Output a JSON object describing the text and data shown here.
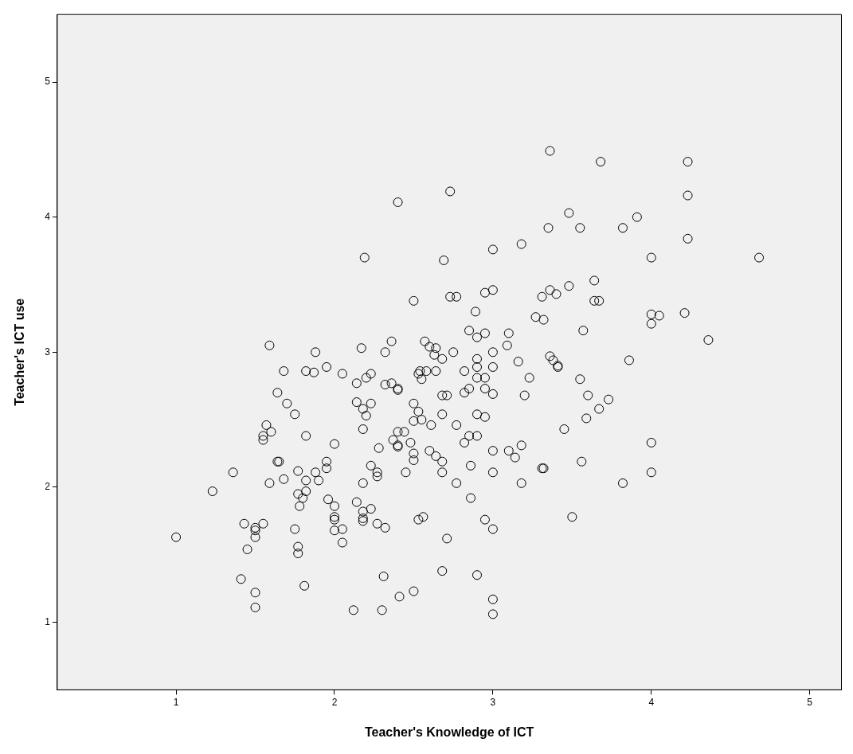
{
  "chart_data": {
    "type": "scatter",
    "xlabel": "Teacher's Knowledge of ICT",
    "ylabel": "Teacher's ICT use",
    "xlim": [
      0.25,
      5.2
    ],
    "ylim": [
      0.5,
      5.5
    ],
    "xticks": [
      1,
      2,
      3,
      4,
      5
    ],
    "yticks": [
      1,
      2,
      3,
      4,
      5
    ],
    "grid": false,
    "legend": false,
    "marker": "circle",
    "series": [
      {
        "color": "#000000",
        "x": [
          1.0,
          1.23,
          1.36,
          1.41,
          1.43,
          1.45,
          1.5,
          1.5,
          1.5,
          1.5,
          1.5,
          1.55,
          1.55,
          1.55,
          1.57,
          1.59,
          1.59,
          1.6,
          1.64,
          1.64,
          1.65,
          1.68,
          1.68,
          1.7,
          1.75,
          1.75,
          1.77,
          1.77,
          1.77,
          1.77,
          1.78,
          1.8,
          1.81,
          1.82,
          1.82,
          1.82,
          1.82,
          1.87,
          1.88,
          1.88,
          1.9,
          1.95,
          1.95,
          1.95,
          1.96,
          2.0,
          2.0,
          2.0,
          2.0,
          2.0,
          2.05,
          2.05,
          2.05,
          2.14,
          2.14,
          2.14,
          2.12,
          2.17,
          2.18,
          2.18,
          2.18,
          2.18,
          2.18,
          2.18,
          2.19,
          2.2,
          2.2,
          2.23,
          2.23,
          2.23,
          2.23,
          2.27,
          2.27,
          2.27,
          2.28,
          2.3,
          2.31,
          2.32,
          2.32,
          2.32,
          2.36,
          2.36,
          2.37,
          2.4,
          2.4,
          2.4,
          2.4,
          2.4,
          2.4,
          2.41,
          2.44,
          2.45,
          2.48,
          2.5,
          2.5,
          2.5,
          2.5,
          2.5,
          2.5,
          2.53,
          2.53,
          2.53,
          2.54,
          2.55,
          2.55,
          2.56,
          2.57,
          2.58,
          2.6,
          2.6,
          2.61,
          2.63,
          2.64,
          2.64,
          2.64,
          2.68,
          2.68,
          2.68,
          2.68,
          2.68,
          2.68,
          2.69,
          2.71,
          2.71,
          2.73,
          2.73,
          2.75,
          2.77,
          2.77,
          2.77,
          2.82,
          2.82,
          2.82,
          2.85,
          2.85,
          2.85,
          2.86,
          2.86,
          2.89,
          2.9,
          2.9,
          2.9,
          2.9,
          2.9,
          2.9,
          2.9,
          2.95,
          2.95,
          2.95,
          2.95,
          2.95,
          2.95,
          3.0,
          3.0,
          3.0,
          3.0,
          3.0,
          3.0,
          3.0,
          3.0,
          3.0,
          3.0,
          3.09,
          3.1,
          3.1,
          3.14,
          3.16,
          3.18,
          3.18,
          3.18,
          3.2,
          3.23,
          3.27,
          3.31,
          3.31,
          3.32,
          3.32,
          3.35,
          3.36,
          3.36,
          3.36,
          3.38,
          3.4,
          3.41,
          3.41,
          3.45,
          3.48,
          3.48,
          3.5,
          3.55,
          3.55,
          3.57,
          3.56,
          3.59,
          3.6,
          3.64,
          3.64,
          3.67,
          3.67,
          3.68,
          3.73,
          3.82,
          3.82,
          3.86,
          3.91,
          4.0,
          4.0,
          4.0,
          4.0,
          4.0,
          4.05,
          4.21,
          4.23,
          4.23,
          4.23,
          4.36,
          4.68
        ],
        "values": [
          1.63,
          1.97,
          2.11,
          1.32,
          1.73,
          1.54,
          1.7,
          1.68,
          1.63,
          1.22,
          1.11,
          1.73,
          2.35,
          2.38,
          2.46,
          3.05,
          2.03,
          2.41,
          2.7,
          2.19,
          2.19,
          2.86,
          2.06,
          2.62,
          2.54,
          1.69,
          2.12,
          1.95,
          1.56,
          1.51,
          1.86,
          1.92,
          1.27,
          2.86,
          2.38,
          1.97,
          2.05,
          2.85,
          3.0,
          2.11,
          2.05,
          2.14,
          2.19,
          2.89,
          1.91,
          2.32,
          1.86,
          1.78,
          1.76,
          1.68,
          2.84,
          1.69,
          1.59,
          2.77,
          2.63,
          1.89,
          1.09,
          3.03,
          2.58,
          2.43,
          2.03,
          1.77,
          1.75,
          1.82,
          3.7,
          2.81,
          2.53,
          2.84,
          2.62,
          2.16,
          1.84,
          2.11,
          2.08,
          1.73,
          2.29,
          1.09,
          1.34,
          3.0,
          2.76,
          1.7,
          3.08,
          2.77,
          2.35,
          4.11,
          2.73,
          2.72,
          2.41,
          2.31,
          2.3,
          1.19,
          2.41,
          2.11,
          2.33,
          3.38,
          2.62,
          2.49,
          2.25,
          2.2,
          1.23,
          2.84,
          2.56,
          1.76,
          2.86,
          2.8,
          2.5,
          1.78,
          3.08,
          2.86,
          3.04,
          2.27,
          2.46,
          2.98,
          3.03,
          2.86,
          2.23,
          2.95,
          2.68,
          2.54,
          2.19,
          2.11,
          1.38,
          3.68,
          2.68,
          1.62,
          4.19,
          3.41,
          3.0,
          3.41,
          2.46,
          2.03,
          2.7,
          2.86,
          2.33,
          3.16,
          2.73,
          2.38,
          2.16,
          1.92,
          3.3,
          3.11,
          2.95,
          2.89,
          2.81,
          2.54,
          2.38,
          1.35,
          3.44,
          3.14,
          2.81,
          2.73,
          2.52,
          1.76,
          3.76,
          3.46,
          3.0,
          2.89,
          2.69,
          2.27,
          2.11,
          1.69,
          1.17,
          1.06,
          3.05,
          3.14,
          2.27,
          2.22,
          2.93,
          3.8,
          2.31,
          2.03,
          2.68,
          2.81,
          3.26,
          3.41,
          2.14,
          3.24,
          2.14,
          3.92,
          4.49,
          3.46,
          2.97,
          2.94,
          3.43,
          2.9,
          2.89,
          2.43,
          4.03,
          3.49,
          1.78,
          3.92,
          2.8,
          3.16,
          2.19,
          2.51,
          2.68,
          3.53,
          3.38,
          3.38,
          2.58,
          4.41,
          2.65,
          3.92,
          2.03,
          2.94,
          4.0,
          3.7,
          3.28,
          3.21,
          2.33,
          2.11,
          3.27,
          3.29,
          4.41,
          4.16,
          3.84,
          3.09,
          3.7
        ]
      }
    ]
  }
}
